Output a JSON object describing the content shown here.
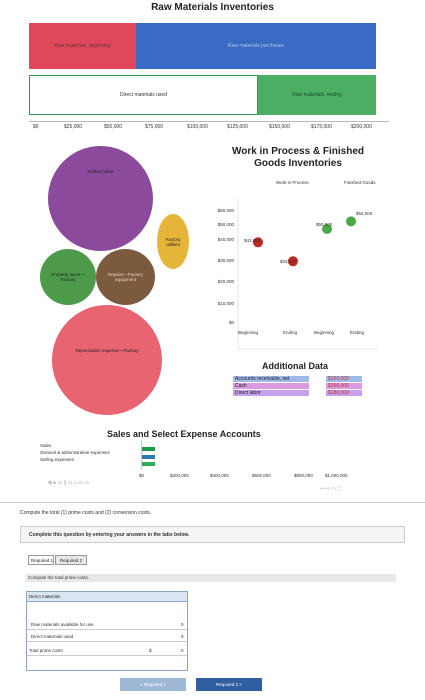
{
  "raw_materials": {
    "title": "Raw Materials Inventories",
    "beginning_label": "Raw materials, beginning",
    "purchases_label": "Raw materials purchases",
    "used_label": "Direct materials used",
    "ending_label": "Raw materials, ending"
  },
  "top_axis": {
    "ticks": [
      "$0",
      "$25,000",
      "$50,000",
      "$75,000",
      "$100,000",
      "$125,000",
      "$150,000",
      "$175,000",
      "$200,000"
    ]
  },
  "bubbles": {
    "indirect_labor": "Indirect labor",
    "factory_utilities": "Factory utilities",
    "property_taxes": "Property taxes—Factory",
    "repairs_factory": "Repairs—Factory equipment",
    "depreciation": "Depreciation expense—Factory"
  },
  "wip": {
    "title": "Work in Process & Finished Goods Inventories",
    "legend_wip": "Work in Process",
    "legend_fg": "Finished Goods",
    "y_ticks": [
      "$60,000",
      "$50,000",
      "$40,000",
      "$30,000",
      "$20,000",
      "$10,000",
      "$0"
    ],
    "x_labels": [
      "Beginning",
      "Ending",
      "Beginning",
      "Ending"
    ],
    "point_labels": [
      "$43,000",
      "$33,000",
      "$50,000",
      "$54,000"
    ]
  },
  "chart_data": {
    "type": "scatter",
    "title": "Work in Process & Finished Goods Inventories",
    "categories": [
      "Beginning",
      "Ending",
      "Beginning",
      "Ending"
    ],
    "series": [
      {
        "name": "Work in Process",
        "values": [
          43000,
          33000
        ],
        "color": "#c0281f"
      },
      {
        "name": "Finished Goods",
        "values": [
          50000,
          54000
        ],
        "color": "#49a847"
      }
    ],
    "ylim": [
      0,
      60000
    ]
  },
  "additional": {
    "title": "Additional Data",
    "rows": [
      {
        "label": "Accounts receivable, net",
        "value": "$150,000",
        "color": "#9fb9e8"
      },
      {
        "label": "Cash",
        "value": "$350,000",
        "color": "#d99ae0"
      },
      {
        "label": "Direct labor",
        "value": "$180,000",
        "color": "#c6a0ec"
      }
    ]
  },
  "sales": {
    "title": "Sales and Select Expense Accounts",
    "labels": [
      "Sales",
      "General & administrative expenses",
      "Selling expenses"
    ],
    "x_ticks": [
      "$0",
      "$200,000",
      "$400,000",
      "$600,000",
      "$800,000",
      "$1,000,000"
    ],
    "toolbar": "⊕ ▸ ▭ ▯ ▭ ⌂ ▭ ▭"
  },
  "question": {
    "prompt": "Compute the total (1) prime costs and (2) conversion costs.",
    "instruction": "Complete this question by entering your answers in the tabs below.",
    "tab1": "Required 1",
    "tab2": "Required 2",
    "tab_prompt": "Compute the total prime costs.",
    "table_header": "Direct materials",
    "rows": [
      "Raw materials available for use",
      "Direct materials used",
      "Total prime costs"
    ],
    "values": [
      "0",
      "0",
      "0"
    ],
    "dollar": "$",
    "prev_button": "< Required 1",
    "next_button": "Required 2 >"
  }
}
